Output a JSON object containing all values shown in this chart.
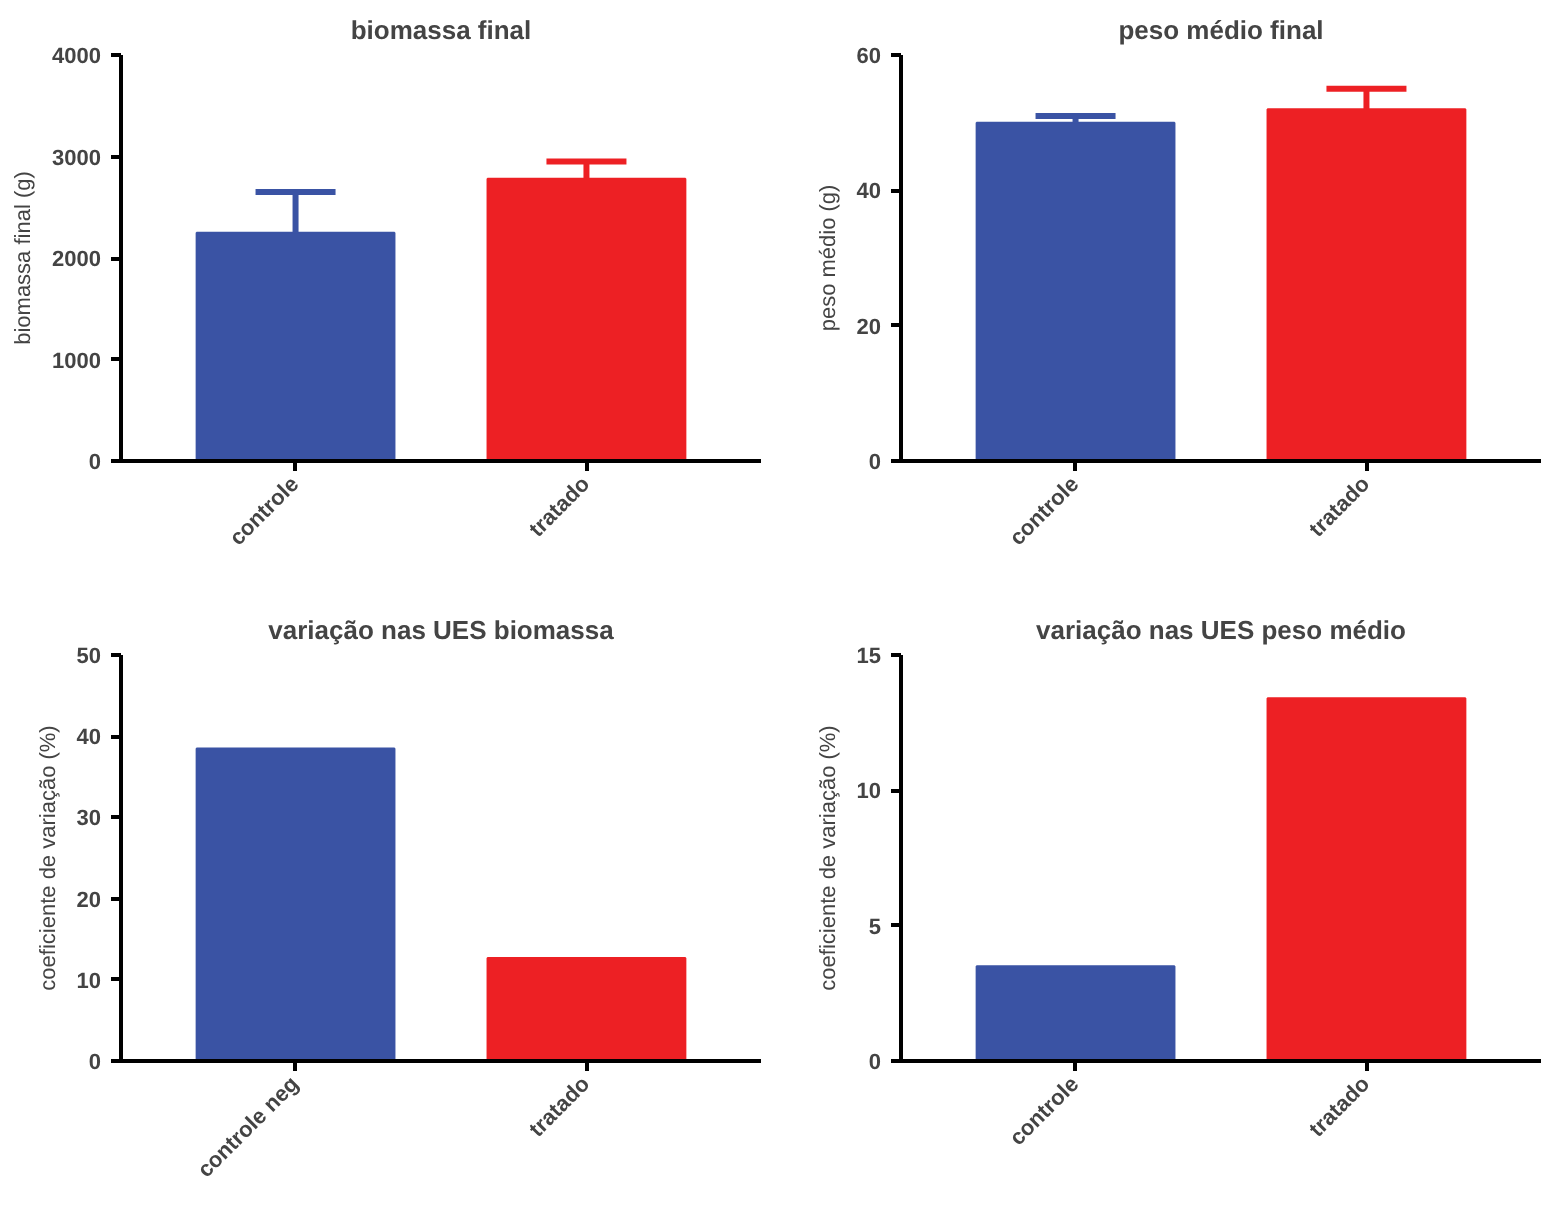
{
  "chart_data": [
    {
      "type": "bar",
      "title": "biomassa final",
      "ylabel": "biomassa final (g)",
      "categories": [
        "controle",
        "tratado"
      ],
      "values": [
        2250,
        2780
      ],
      "colors": [
        "#3a53a4",
        "#ed2024"
      ],
      "errors": [
        [
          2250,
          2650
        ],
        [
          2780,
          2950
        ]
      ],
      "ylim": [
        0,
        4000
      ],
      "yticks": [
        0,
        1000,
        2000,
        3000,
        4000
      ]
    },
    {
      "type": "bar",
      "title": "peso médio final",
      "ylabel": "peso médio (g)",
      "categories": [
        "controle",
        "tratado"
      ],
      "values": [
        50,
        52
      ],
      "colors": [
        "#3a53a4",
        "#ed2024"
      ],
      "errors": [
        [
          50,
          51
        ],
        [
          52,
          55
        ]
      ],
      "ylim": [
        0,
        60
      ],
      "yticks": [
        0,
        20,
        40,
        60
      ]
    },
    {
      "type": "bar",
      "title": "variação nas UES biomassa",
      "ylabel": "coeficiente de variação (%)",
      "categories": [
        "controle neg",
        "tratado"
      ],
      "values": [
        38.5,
        12.7
      ],
      "colors": [
        "#3a53a4",
        "#ed2024"
      ],
      "ylim": [
        0,
        50
      ],
      "yticks": [
        0,
        10,
        20,
        30,
        40,
        50
      ]
    },
    {
      "type": "bar",
      "title": "variação nas UES peso médio",
      "ylabel": "coeficiente de variação (%)",
      "categories": [
        "controle",
        "tratado"
      ],
      "values": [
        3.5,
        13.4
      ],
      "colors": [
        "#3a53a4",
        "#ed2024"
      ],
      "ylim": [
        0,
        15
      ],
      "yticks": [
        0,
        5,
        10,
        15
      ]
    }
  ]
}
